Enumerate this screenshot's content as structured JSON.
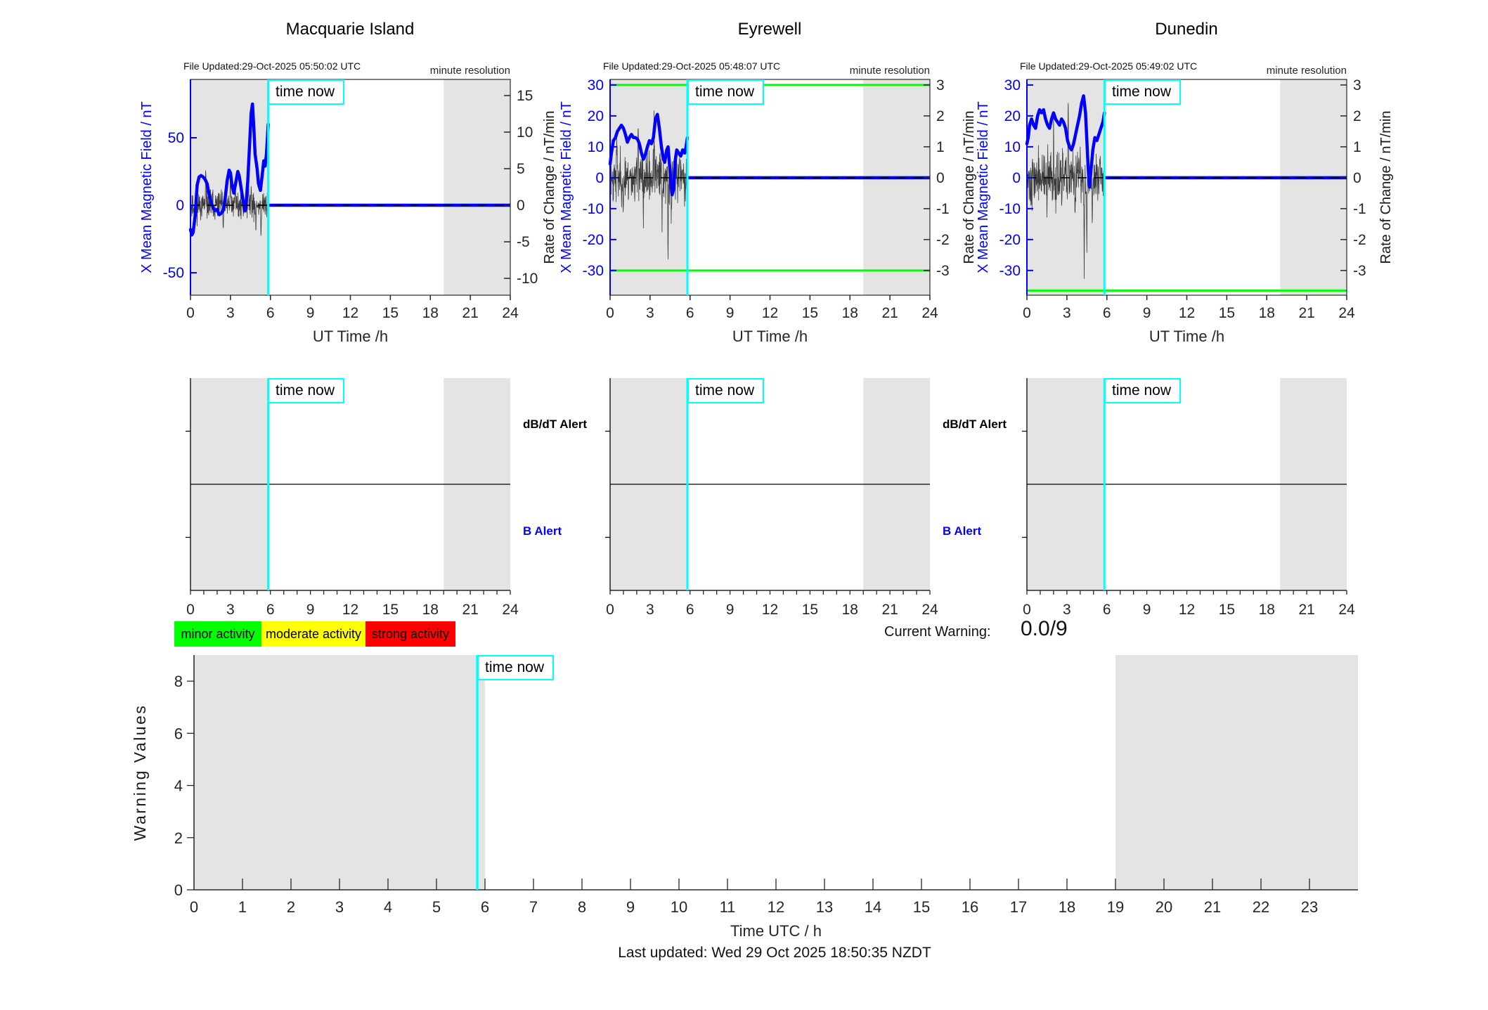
{
  "page": {
    "time_now_label": "time now",
    "current_warning": {
      "label": "Current Warning:",
      "value": "0.0/9"
    },
    "last_updated": "Last updated: Wed 29 Oct 2025 18:50:35 NZDT",
    "colors": {
      "field_blue": "#0000FF",
      "rate_black": "#3c3c3c",
      "time_now_cyan": "#00FFFF",
      "threshold_green": "#00FF00",
      "band_gray": "#E4E4E4",
      "tick_text": "#262626"
    }
  },
  "legend": {
    "items": [
      {
        "label": "minor activity",
        "color": "#00FF00"
      },
      {
        "label": "moderate activity",
        "color": "#FFFF00"
      },
      {
        "label": "strong activity",
        "color": "#FF0000"
      }
    ]
  },
  "chart_data": [
    {
      "id": "macquarie-field",
      "type": "line",
      "title": "Macquarie Island",
      "file_updated": "File Updated:29-Oct-2025 05:50:02 UTC",
      "annotation": "minute resolution",
      "xlabel": "UT Time /h",
      "xlim": [
        0,
        24
      ],
      "xticks": [
        0,
        3,
        6,
        9,
        12,
        15,
        18,
        21,
        24
      ],
      "left_axis": {
        "label": "X Mean Magnetic Field / nT",
        "ticks": [
          50,
          0,
          -50
        ],
        "lim": [
          -66.6,
          93.2
        ]
      },
      "right_axis": {
        "label": "Rate of Change / nT/min",
        "ticks": [
          15,
          10,
          5,
          0,
          -5,
          -10
        ],
        "lim": [
          -12.3,
          17.2
        ]
      },
      "thresholds_nT": [],
      "time_now_h": 5.833,
      "gray_bands_h": [
        [
          0,
          5.833
        ],
        [
          19,
          24
        ]
      ],
      "series": {
        "mean_field_nT": [
          [
            0,
            -18
          ],
          [
            0.1,
            -22
          ],
          [
            0.2,
            -20
          ],
          [
            0.35,
            -8
          ],
          [
            0.5,
            15
          ],
          [
            0.65,
            21
          ],
          [
            0.8,
            22
          ],
          [
            0.95,
            21
          ],
          [
            1.1,
            19
          ],
          [
            1.25,
            16
          ],
          [
            1.4,
            8
          ],
          [
            1.55,
            2
          ],
          [
            1.7,
            -2
          ],
          [
            1.85,
            -4
          ],
          [
            2.0,
            -3
          ],
          [
            2.15,
            -7
          ],
          [
            2.3,
            -6
          ],
          [
            2.45,
            -4
          ],
          [
            2.6,
            5
          ],
          [
            2.75,
            18
          ],
          [
            2.9,
            26
          ],
          [
            3.0,
            24
          ],
          [
            3.1,
            16
          ],
          [
            3.25,
            9
          ],
          [
            3.4,
            17
          ],
          [
            3.55,
            25
          ],
          [
            3.65,
            22
          ],
          [
            3.8,
            13
          ],
          [
            3.95,
            3
          ],
          [
            4.05,
            -4
          ],
          [
            4.15,
            -2
          ],
          [
            4.3,
            18
          ],
          [
            4.45,
            48
          ],
          [
            4.55,
            68
          ],
          [
            4.65,
            75
          ],
          [
            4.75,
            58
          ],
          [
            4.85,
            38
          ],
          [
            5.0,
            27
          ],
          [
            5.1,
            16
          ],
          [
            5.25,
            11
          ],
          [
            5.4,
            24
          ],
          [
            5.5,
            33
          ],
          [
            5.6,
            29
          ],
          [
            5.7,
            38
          ],
          [
            5.833,
            60
          ]
        ],
        "flat_after_time_now_nT": 0,
        "rate_noise": {
          "sigma_units": 1.1,
          "seed": 11,
          "spikes_units": [
            [
              1.15,
              4.6
            ],
            [
              2.45,
              -3.6
            ],
            [
              3.0,
              4.5
            ],
            [
              3.35,
              4.2
            ],
            [
              4.35,
              5.0
            ],
            [
              4.55,
              3.8
            ],
            [
              4.9,
              -4.4
            ],
            [
              5.3,
              -3.6
            ]
          ]
        }
      }
    },
    {
      "id": "eyrewell-field",
      "type": "line",
      "title": "Eyrewell",
      "file_updated": "File Updated:29-Oct-2025 05:48:07 UTC",
      "annotation": "minute resolution",
      "xlabel": "UT Time /h",
      "xlim": [
        0,
        24
      ],
      "xticks": [
        0,
        3,
        6,
        9,
        12,
        15,
        18,
        21,
        24
      ],
      "left_axis": {
        "label": "X Mean Magnetic Field / nT",
        "ticks": [
          30,
          20,
          10,
          0,
          -10,
          -20,
          -30
        ],
        "lim": [
          -38.0,
          31.8
        ]
      },
      "right_axis": {
        "label": "Rate of Change / nT/min",
        "ticks": [
          3,
          2,
          1,
          0,
          -1,
          -2,
          -3
        ],
        "lim": [
          -3.8,
          3.18
        ]
      },
      "thresholds_nT": [
        30,
        -30
      ],
      "time_now_h": 5.802,
      "gray_bands_h": [
        [
          0,
          5.802
        ],
        [
          19,
          24
        ]
      ],
      "series": {
        "mean_field_nT": [
          [
            0,
            4.5
          ],
          [
            0.1,
            8
          ],
          [
            0.25,
            12
          ],
          [
            0.4,
            13
          ],
          [
            0.55,
            15
          ],
          [
            0.7,
            16
          ],
          [
            0.85,
            17
          ],
          [
            1.0,
            16
          ],
          [
            1.15,
            14
          ],
          [
            1.3,
            11.5
          ],
          [
            1.45,
            13
          ],
          [
            1.6,
            14
          ],
          [
            1.75,
            13
          ],
          [
            1.9,
            13
          ],
          [
            2.05,
            12.5
          ],
          [
            2.2,
            11
          ],
          [
            2.35,
            8
          ],
          [
            2.5,
            6
          ],
          [
            2.65,
            7.5
          ],
          [
            2.8,
            10
          ],
          [
            2.95,
            12
          ],
          [
            3.1,
            11
          ],
          [
            3.25,
            13
          ],
          [
            3.4,
            19
          ],
          [
            3.55,
            20.5
          ],
          [
            3.7,
            16
          ],
          [
            3.85,
            10
          ],
          [
            4.0,
            6
          ],
          [
            4.1,
            5
          ],
          [
            4.25,
            9
          ],
          [
            4.35,
            10
          ],
          [
            4.5,
            2
          ],
          [
            4.65,
            -5.5
          ],
          [
            4.75,
            -4
          ],
          [
            4.9,
            6
          ],
          [
            5.0,
            9
          ],
          [
            5.15,
            8
          ],
          [
            5.3,
            7
          ],
          [
            5.45,
            9
          ],
          [
            5.6,
            8
          ],
          [
            5.7,
            10
          ],
          [
            5.802,
            13
          ]
        ],
        "flat_after_time_now_nT": 0,
        "rate_noise": {
          "sigma_units": 0.45,
          "seed": 23,
          "spikes_units": [
            [
              0.5,
              1.2
            ],
            [
              1.0,
              -1.3
            ],
            [
              2.1,
              2.6
            ],
            [
              2.5,
              -1.5
            ],
            [
              3.3,
              1.7
            ],
            [
              3.9,
              -1.6
            ],
            [
              4.35,
              -2.7
            ],
            [
              4.6,
              -1.5
            ],
            [
              5.2,
              1.0
            ]
          ]
        }
      }
    },
    {
      "id": "dunedin-field",
      "type": "line",
      "title": "Dunedin",
      "file_updated": "File Updated:29-Oct-2025 05:49:02 UTC",
      "annotation": "minute resolution",
      "xlabel": "UT Time /h",
      "xlim": [
        0,
        24
      ],
      "xticks": [
        0,
        3,
        6,
        9,
        12,
        15,
        18,
        21,
        24
      ],
      "left_axis": {
        "label": "X Mean Magnetic Field / nT",
        "ticks": [
          30,
          20,
          10,
          0,
          -10,
          -20,
          -30
        ],
        "lim": [
          -38.0,
          31.8
        ]
      },
      "right_axis": {
        "label": "Rate of Change / nT/min",
        "ticks": [
          3,
          2,
          1,
          0,
          -1,
          -2,
          -3
        ],
        "lim": [
          -3.8,
          3.18
        ]
      },
      "thresholds_nT": [
        -36.5
      ],
      "time_now_h": 5.817,
      "gray_bands_h": [
        [
          0,
          5.817
        ],
        [
          19,
          24
        ]
      ],
      "series": {
        "mean_field_nT": [
          [
            0,
            11
          ],
          [
            0.1,
            13
          ],
          [
            0.2,
            17
          ],
          [
            0.35,
            19
          ],
          [
            0.5,
            17
          ],
          [
            0.65,
            16
          ],
          [
            0.8,
            20
          ],
          [
            0.95,
            22
          ],
          [
            1.1,
            21
          ],
          [
            1.25,
            22
          ],
          [
            1.4,
            19
          ],
          [
            1.55,
            17
          ],
          [
            1.7,
            16
          ],
          [
            1.85,
            19
          ],
          [
            2.0,
            21
          ],
          [
            2.15,
            19
          ],
          [
            2.3,
            18
          ],
          [
            2.45,
            17
          ],
          [
            2.6,
            19
          ],
          [
            2.75,
            18
          ],
          [
            2.9,
            16
          ],
          [
            3.05,
            12
          ],
          [
            3.2,
            10
          ],
          [
            3.35,
            9
          ],
          [
            3.5,
            11
          ],
          [
            3.65,
            14
          ],
          [
            3.8,
            17
          ],
          [
            3.95,
            20
          ],
          [
            4.1,
            24
          ],
          [
            4.25,
            26.5
          ],
          [
            4.4,
            21
          ],
          [
            4.5,
            12
          ],
          [
            4.6,
            3
          ],
          [
            4.7,
            -3
          ],
          [
            4.8,
            2
          ],
          [
            4.95,
            9
          ],
          [
            5.1,
            13
          ],
          [
            5.25,
            12
          ],
          [
            5.4,
            14
          ],
          [
            5.55,
            16
          ],
          [
            5.7,
            18
          ],
          [
            5.817,
            21
          ]
        ],
        "flat_after_time_now_nT": 0,
        "rate_noise": {
          "sigma_units": 0.5,
          "seed": 37,
          "spikes_units": [
            [
              0.3,
              -1.2
            ],
            [
              1.5,
              -1.3
            ],
            [
              2.0,
              1.2
            ],
            [
              2.6,
              -1.3
            ],
            [
              3.1,
              2.6
            ],
            [
              3.6,
              -1.0
            ],
            [
              4.3,
              -2.9
            ],
            [
              4.5,
              -2.0
            ],
            [
              4.9,
              -1.3
            ],
            [
              5.5,
              0.9
            ]
          ]
        }
      }
    },
    {
      "id": "macquarie-alerts",
      "type": "alert",
      "labels": {
        "top": "dB/dT Alert",
        "bottom": "B Alert"
      },
      "show_labels": true,
      "xlim": [
        0,
        24
      ],
      "xticks": [
        0,
        3,
        6,
        9,
        12,
        15,
        18,
        21,
        24
      ],
      "minor_tick_step_h": 1,
      "time_now_h": 5.833,
      "gray_bands_h": [
        [
          0,
          5.833
        ],
        [
          19,
          24
        ]
      ],
      "events": []
    },
    {
      "id": "eyrewell-alerts",
      "type": "alert",
      "labels": {
        "top": "dB/dT Alert",
        "bottom": "B Alert"
      },
      "show_labels": true,
      "xlim": [
        0,
        24
      ],
      "xticks": [
        0,
        3,
        6,
        9,
        12,
        15,
        18,
        21,
        24
      ],
      "minor_tick_step_h": 1,
      "time_now_h": 5.802,
      "gray_bands_h": [
        [
          0,
          5.802
        ],
        [
          19,
          24
        ]
      ],
      "events": []
    },
    {
      "id": "dunedin-alerts",
      "type": "alert",
      "labels": {
        "top": "",
        "bottom": ""
      },
      "show_labels": false,
      "xlim": [
        0,
        24
      ],
      "xticks": [
        0,
        3,
        6,
        9,
        12,
        15,
        18,
        21,
        24
      ],
      "minor_tick_step_h": 1,
      "time_now_h": 5.817,
      "gray_bands_h": [
        [
          0,
          5.817
        ],
        [
          19,
          24
        ]
      ],
      "events": []
    },
    {
      "id": "warning-values",
      "type": "warning",
      "ylabel": "Warning Values",
      "yticks": [
        0,
        2,
        4,
        6,
        8
      ],
      "ylim": [
        0,
        9
      ],
      "xlabel": "Time UTC / h",
      "xlim": [
        0,
        24
      ],
      "xticks": [
        0,
        1,
        2,
        3,
        4,
        5,
        6,
        7,
        8,
        9,
        10,
        11,
        12,
        13,
        14,
        15,
        16,
        17,
        18,
        19,
        20,
        21,
        22,
        23
      ],
      "time_now_h": 5.84,
      "gray_bands_h": [
        [
          0,
          6.0
        ],
        [
          19,
          24
        ]
      ],
      "values": []
    }
  ]
}
